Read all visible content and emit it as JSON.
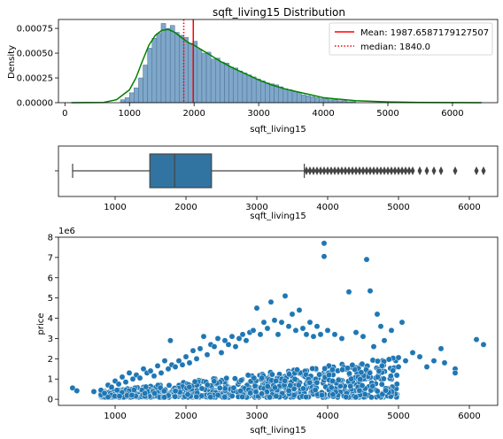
{
  "chart_data": [
    {
      "type": "bar",
      "title": "sqft_living15 Distribution",
      "xlabel": "sqft_living15",
      "ylabel": "Density",
      "xlim": [
        -100,
        6700
      ],
      "ylim": [
        0,
        0.00084
      ],
      "xticks": [
        "0",
        "1000",
        "2000",
        "3000",
        "4000",
        "5000",
        "6000"
      ],
      "yticks": [
        "0.00000",
        "0.00025",
        "0.00050",
        "0.00075"
      ],
      "bin_width": 70,
      "bin_centers": [
        895,
        965,
        1035,
        1105,
        1175,
        1245,
        1315,
        1385,
        1455,
        1525,
        1595,
        1665,
        1735,
        1805,
        1875,
        1945,
        2015,
        2085,
        2155,
        2225,
        2295,
        2365,
        2435,
        2505,
        2575,
        2645,
        2715,
        2785,
        2855,
        2925,
        2995,
        3065,
        3135,
        3205,
        3275,
        3345,
        3415,
        3485,
        3555,
        3625,
        3695,
        3765,
        3835,
        3905,
        3975,
        4045,
        4115,
        4185,
        4255,
        4325,
        4395,
        4465
      ],
      "values": [
        3e-05,
        5e-05,
        0.0001,
        0.00015,
        0.00025,
        0.00038,
        0.00055,
        0.00065,
        0.0007,
        0.0008,
        0.00075,
        0.00078,
        0.00071,
        0.00068,
        0.00066,
        0.0006,
        0.00062,
        0.00054,
        0.0005,
        0.00051,
        0.00044,
        0.00045,
        0.00041,
        0.0004,
        0.00036,
        0.00035,
        0.00032,
        0.0003,
        0.00028,
        0.00026,
        0.00024,
        0.00022,
        0.0002,
        0.00019,
        0.00018,
        0.00016,
        0.00014,
        0.00013,
        0.00011,
        0.0001,
        8e-05,
        7e-05,
        6e-05,
        5e-05,
        4e-05,
        4e-05,
        3e-05,
        3e-05,
        2e-05,
        2e-05,
        1e-05,
        1e-05
      ],
      "kde": {
        "x": [
          100,
          600,
          800,
          1000,
          1100,
          1200,
          1300,
          1400,
          1500,
          1600,
          1700,
          1800,
          1900,
          2000,
          2200,
          2400,
          2600,
          2800,
          3000,
          3200,
          3400,
          3600,
          3800,
          4000,
          4500,
          5000,
          5500,
          6000,
          6450
        ],
        "y": [
          0,
          3e-06,
          3e-05,
          0.00013,
          0.00025,
          0.00042,
          0.00058,
          0.00068,
          0.00073,
          0.00074,
          0.00071,
          0.00066,
          0.00061,
          0.00058,
          0.0005,
          0.00042,
          0.00035,
          0.00029,
          0.00023,
          0.00018,
          0.00014,
          0.00011,
          8e-05,
          5e-05,
          2e-05,
          8e-06,
          3e-06,
          1e-06,
          0
        ]
      },
      "bar_color": "#7fa7c9",
      "kde_color": "#008000",
      "mean": {
        "value": 1987.6587179127507,
        "label": "Mean: 1987.6587179127507",
        "color": "#ff0000"
      },
      "median": {
        "value": 1840.0,
        "label": "median: 1840.0",
        "color": "#ff0000"
      },
      "legend_position": "top-right"
    },
    {
      "type": "box",
      "xlabel": "sqft_living15",
      "xlim": [
        200,
        6400
      ],
      "xticks": [
        "1000",
        "2000",
        "3000",
        "4000",
        "5000",
        "6000"
      ],
      "whisker_low": 400,
      "q1": 1490,
      "median": 1840,
      "q3": 2360,
      "whisker_high": 3670,
      "outliers": [
        3700,
        3750,
        3800,
        3850,
        3900,
        3950,
        4000,
        4050,
        4100,
        4150,
        4200,
        4250,
        4300,
        4350,
        4400,
        4450,
        4500,
        4550,
        4600,
        4650,
        4700,
        4750,
        4800,
        4850,
        4900,
        4950,
        5000,
        5050,
        5100,
        5150,
        5200,
        5300,
        5400,
        5500,
        5600,
        5800,
        6100,
        6200
      ],
      "box_color": "#3274a1"
    },
    {
      "type": "scatter",
      "xlabel": "sqft_living15",
      "ylabel": "price",
      "y_offset_label": "1e6",
      "xlim": [
        200,
        6400
      ],
      "ylim": [
        -300000,
        8000000
      ],
      "xticks": [
        "1000",
        "2000",
        "3000",
        "4000",
        "5000",
        "6000"
      ],
      "yticks": [
        "0",
        "1",
        "2",
        "3",
        "4",
        "5",
        "6",
        "7",
        "8"
      ],
      "point_color": "#1f77b4",
      "points": [
        [
          399,
          560000
        ],
        [
          460,
          420000
        ],
        [
          700,
          380000
        ],
        [
          800,
          450000
        ],
        [
          850,
          300000
        ],
        [
          900,
          700000
        ],
        [
          950,
          600000
        ],
        [
          1000,
          900000
        ],
        [
          1050,
          750000
        ],
        [
          1100,
          1100000
        ],
        [
          1150,
          850000
        ],
        [
          1200,
          1300000
        ],
        [
          1250,
          1000000
        ],
        [
          1300,
          1200000
        ],
        [
          1350,
          1050000
        ],
        [
          1400,
          1500000
        ],
        [
          1450,
          1300000
        ],
        [
          1500,
          1400000
        ],
        [
          1550,
          1150000
        ],
        [
          1600,
          1650000
        ],
        [
          1650,
          1300000
        ],
        [
          1700,
          1900000
        ],
        [
          1750,
          1500000
        ],
        [
          1780,
          2900000
        ],
        [
          1800,
          1700000
        ],
        [
          1850,
          1600000
        ],
        [
          1900,
          1900000
        ],
        [
          1950,
          1700000
        ],
        [
          2000,
          2100000
        ],
        [
          2050,
          1800000
        ],
        [
          2100,
          2400000
        ],
        [
          2150,
          2000000
        ],
        [
          2200,
          2500000
        ],
        [
          2250,
          3100000
        ],
        [
          2300,
          2200000
        ],
        [
          2350,
          2700000
        ],
        [
          2400,
          2600000
        ],
        [
          2450,
          3000000
        ],
        [
          2500,
          2300000
        ],
        [
          2550,
          2900000
        ],
        [
          2600,
          2700000
        ],
        [
          2650,
          3100000
        ],
        [
          2700,
          2600000
        ],
        [
          2750,
          3000000
        ],
        [
          2800,
          3200000
        ],
        [
          2850,
          2900000
        ],
        [
          2900,
          3300000
        ],
        [
          2950,
          3400000
        ],
        [
          3000,
          4500000
        ],
        [
          3050,
          3200000
        ],
        [
          3100,
          3800000
        ],
        [
          3150,
          3500000
        ],
        [
          3200,
          4800000
        ],
        [
          3250,
          3900000
        ],
        [
          3300,
          3200000
        ],
        [
          3350,
          3800000
        ],
        [
          3400,
          5100000
        ],
        [
          3450,
          3600000
        ],
        [
          3500,
          4200000
        ],
        [
          3550,
          3400000
        ],
        [
          3600,
          4400000
        ],
        [
          3650,
          3500000
        ],
        [
          3700,
          3200000
        ],
        [
          3750,
          3800000
        ],
        [
          3800,
          3100000
        ],
        [
          3850,
          3600000
        ],
        [
          3900,
          3200000
        ],
        [
          3950,
          7700000
        ],
        [
          3950,
          7050000
        ],
        [
          4000,
          3400000
        ],
        [
          4100,
          3200000
        ],
        [
          4200,
          3000000
        ],
        [
          4300,
          5300000
        ],
        [
          4400,
          3300000
        ],
        [
          4500,
          3100000
        ],
        [
          4550,
          6900000
        ],
        [
          4600,
          5350000
        ],
        [
          4650,
          2600000
        ],
        [
          4700,
          4200000
        ],
        [
          4750,
          3600000
        ],
        [
          4800,
          2900000
        ],
        [
          4900,
          3400000
        ],
        [
          5000,
          1600000
        ],
        [
          5050,
          3800000
        ],
        [
          5100,
          1900000
        ],
        [
          5200,
          2300000
        ],
        [
          5300,
          2100000
        ],
        [
          5400,
          1600000
        ],
        [
          5500,
          1900000
        ],
        [
          5600,
          2500000
        ],
        [
          5650,
          1800000
        ],
        [
          5800,
          1500000
        ],
        [
          5800,
          1300000
        ],
        [
          6100,
          2950000
        ],
        [
          6200,
          2700000
        ]
      ]
    }
  ]
}
